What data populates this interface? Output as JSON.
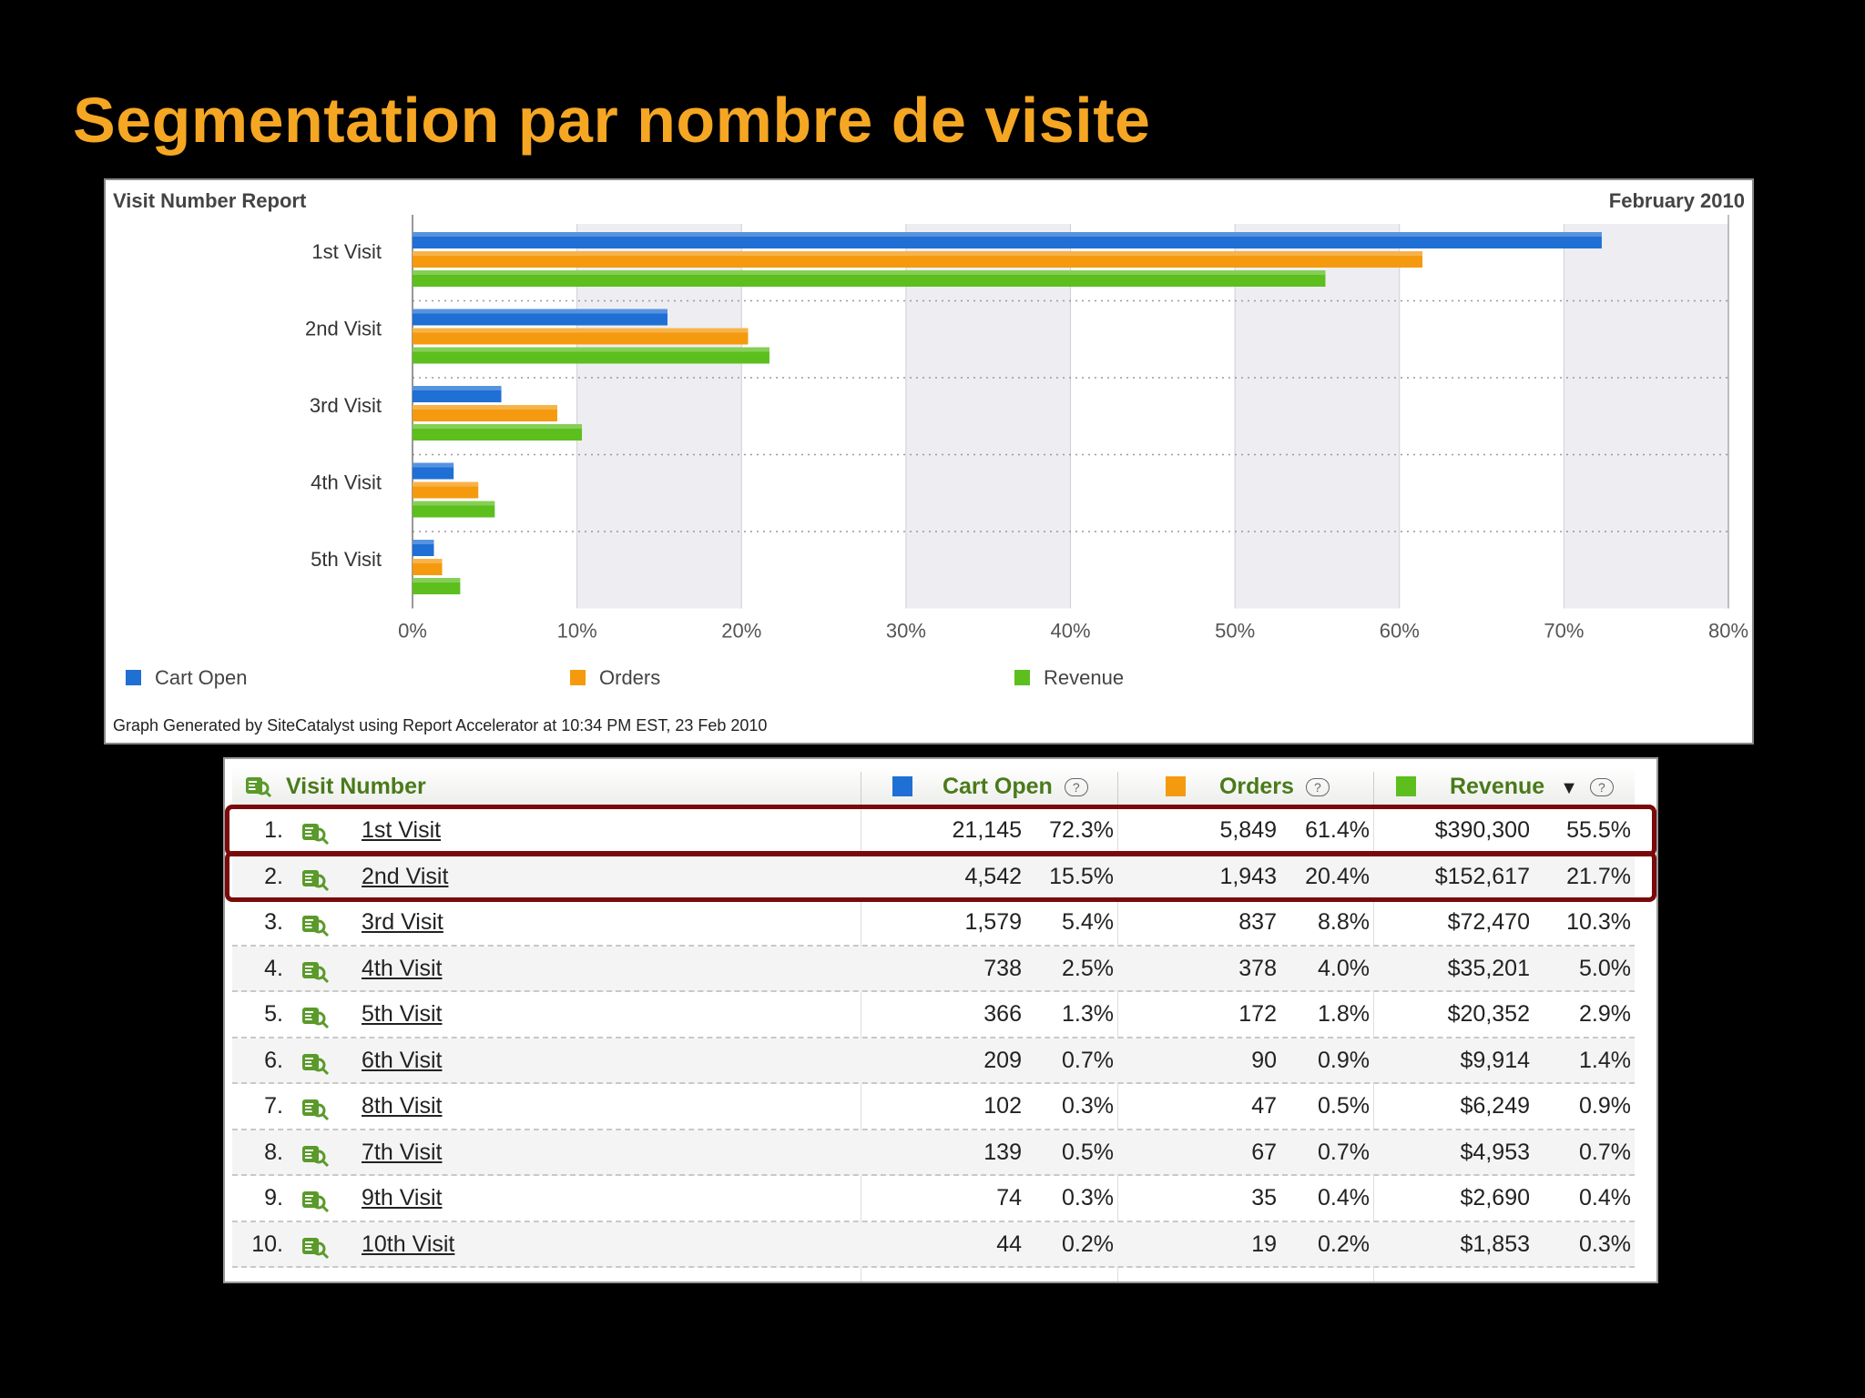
{
  "slide": {
    "title": "Segmentation par nombre de visite"
  },
  "chart_panel": {
    "title": "Visit Number Report",
    "date": "February 2010",
    "footer": "Graph Generated by SiteCatalyst using Report Accelerator at 10:34 PM EST, 23 Feb 2010"
  },
  "chart_data": {
    "type": "bar",
    "orientation": "horizontal",
    "categories": [
      "1st Visit",
      "2nd Visit",
      "3rd Visit",
      "4th Visit",
      "5th Visit"
    ],
    "series": [
      {
        "name": "Cart Open",
        "color": "#1f6fd4",
        "values": [
          72.3,
          15.5,
          5.4,
          2.5,
          1.3
        ]
      },
      {
        "name": "Orders",
        "color": "#f59a0e",
        "values": [
          61.4,
          20.4,
          8.8,
          4.0,
          1.8
        ]
      },
      {
        "name": "Revenue",
        "color": "#5cbf1e",
        "values": [
          55.5,
          21.7,
          10.3,
          5.0,
          2.9
        ]
      }
    ],
    "xlim": [
      0,
      80
    ],
    "x_ticks": [
      "0%",
      "10%",
      "20%",
      "30%",
      "40%",
      "50%",
      "60%",
      "70%",
      "80%"
    ],
    "grid": true,
    "legend": "bottom"
  },
  "table": {
    "headers": {
      "visit_number": "Visit Number",
      "cart_open": "Cart Open",
      "orders": "Orders",
      "revenue": "Revenue",
      "help": "?",
      "sort": "▼"
    },
    "colors": {
      "cart_open": "#1f6fd4",
      "orders": "#f59a0e",
      "revenue": "#5cbf1e",
      "highlight": "#7a0a0a"
    },
    "rows": [
      {
        "rank": "1.",
        "name": "1st Visit",
        "cart": "21,145",
        "cart_pct": "72.3%",
        "orders": "5,849",
        "orders_pct": "61.4%",
        "revenue": "$390,300",
        "revenue_pct": "55.5%",
        "highlighted": true
      },
      {
        "rank": "2.",
        "name": "2nd Visit",
        "cart": "4,542",
        "cart_pct": "15.5%",
        "orders": "1,943",
        "orders_pct": "20.4%",
        "revenue": "$152,617",
        "revenue_pct": "21.7%",
        "highlighted": true
      },
      {
        "rank": "3.",
        "name": "3rd Visit",
        "cart": "1,579",
        "cart_pct": "5.4%",
        "orders": "837",
        "orders_pct": "8.8%",
        "revenue": "$72,470",
        "revenue_pct": "10.3%"
      },
      {
        "rank": "4.",
        "name": "4th Visit",
        "cart": "738",
        "cart_pct": "2.5%",
        "orders": "378",
        "orders_pct": "4.0%",
        "revenue": "$35,201",
        "revenue_pct": "5.0%"
      },
      {
        "rank": "5.",
        "name": "5th Visit",
        "cart": "366",
        "cart_pct": "1.3%",
        "orders": "172",
        "orders_pct": "1.8%",
        "revenue": "$20,352",
        "revenue_pct": "2.9%"
      },
      {
        "rank": "6.",
        "name": "6th Visit",
        "cart": "209",
        "cart_pct": "0.7%",
        "orders": "90",
        "orders_pct": "0.9%",
        "revenue": "$9,914",
        "revenue_pct": "1.4%"
      },
      {
        "rank": "7.",
        "name": "8th Visit",
        "cart": "102",
        "cart_pct": "0.3%",
        "orders": "47",
        "orders_pct": "0.5%",
        "revenue": "$6,249",
        "revenue_pct": "0.9%"
      },
      {
        "rank": "8.",
        "name": "7th Visit",
        "cart": "139",
        "cart_pct": "0.5%",
        "orders": "67",
        "orders_pct": "0.7%",
        "revenue": "$4,953",
        "revenue_pct": "0.7%"
      },
      {
        "rank": "9.",
        "name": "9th Visit",
        "cart": "74",
        "cart_pct": "0.3%",
        "orders": "35",
        "orders_pct": "0.4%",
        "revenue": "$2,690",
        "revenue_pct": "0.4%"
      },
      {
        "rank": "10.",
        "name": "10th Visit",
        "cart": "44",
        "cart_pct": "0.2%",
        "orders": "19",
        "orders_pct": "0.2%",
        "revenue": "$1,853",
        "revenue_pct": "0.3%"
      }
    ]
  },
  "icons": {
    "report_icon": "report-magnifier-icon",
    "help_icon": "help-icon",
    "sort_icon": "sort-desc-icon"
  }
}
